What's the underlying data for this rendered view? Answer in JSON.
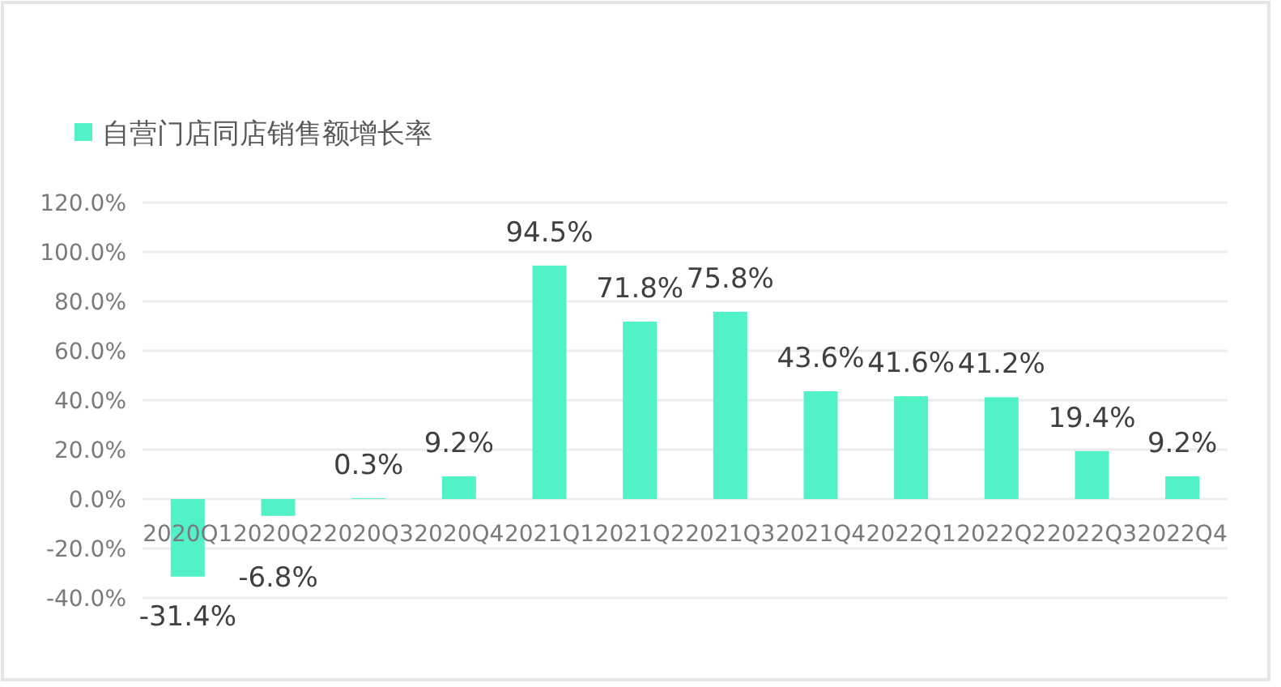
{
  "chart_data": {
    "type": "bar",
    "categories": [
      "2020Q1",
      "2020Q2",
      "2020Q3",
      "2020Q4",
      "2021Q1",
      "2021Q2",
      "2021Q3",
      "2021Q4",
      "2022Q1",
      "2022Q2",
      "2022Q3",
      "2022Q4"
    ],
    "series": [
      {
        "name": "自营门店同店销售额增长率",
        "color": "#52f2c9",
        "values": [
          -31.4,
          -6.8,
          0.3,
          9.2,
          94.5,
          71.8,
          75.8,
          43.6,
          41.6,
          41.2,
          19.4,
          9.2
        ],
        "value_labels": [
          "-31.4%",
          "-6.8%",
          "0.3%",
          "9.2%",
          "94.5%",
          "71.8%",
          "75.8%",
          "43.6%",
          "41.6%",
          "41.2%",
          "19.4%",
          "9.2%"
        ]
      }
    ],
    "ylim": [
      -40,
      120
    ],
    "yticks": [
      {
        "value": -40,
        "label": "-40.0%"
      },
      {
        "value": -20,
        "label": "-20.0%"
      },
      {
        "value": 0,
        "label": "0.0%"
      },
      {
        "value": 20,
        "label": "20.0%"
      },
      {
        "value": 40,
        "label": "40.0%"
      },
      {
        "value": 60,
        "label": "60.0%"
      },
      {
        "value": 80,
        "label": "80.0%"
      },
      {
        "value": 100,
        "label": "100.0%"
      },
      {
        "value": 120,
        "label": "120.0%"
      }
    ],
    "grid": "y",
    "legend": "top left"
  }
}
